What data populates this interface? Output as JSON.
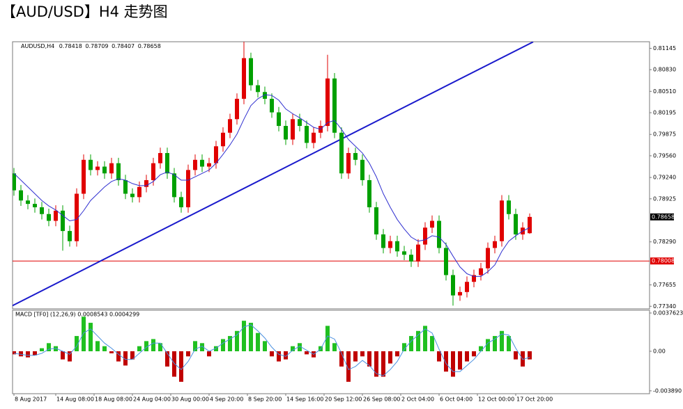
{
  "header": {
    "title": "【AUD/USD】H4 走势图"
  },
  "chart_data": {
    "type": "candlestick",
    "symbol": "AUDUSD,H4",
    "up_color": "#e00000",
    "down_color": "#00a000",
    "ma_color": "#3030d0",
    "xlim": [
      -0.2,
      91.2
    ],
    "ylim": [
      0.77302,
      0.81242
    ],
    "xticks": [
      {
        "value": 0,
        "label": "8 Aug 2017"
      },
      {
        "value": 6,
        "label": "14 Aug 08:00"
      },
      {
        "value": 11.5,
        "label": "18 Aug 08:00"
      },
      {
        "value": 17,
        "label": "24 Aug 04:00"
      },
      {
        "value": 22.5,
        "label": "30 Aug 00:00"
      },
      {
        "value": 28,
        "label": "4 Sep 20:00"
      },
      {
        "value": 33.5,
        "label": "8 Sep 20:00"
      },
      {
        "value": 39,
        "label": "14 Sep 16:00"
      },
      {
        "value": 44.5,
        "label": "20 Sep 12:00"
      },
      {
        "value": 50,
        "label": "26 Sep 08:00"
      },
      {
        "value": 55.5,
        "label": "2 Oct 04:00"
      },
      {
        "value": 61,
        "label": "6 Oct 04:00"
      },
      {
        "value": 66.5,
        "label": "12 Oct 00:00"
      },
      {
        "value": 72,
        "label": "17 Oct 20:00"
      }
    ],
    "yticks": [
      0.81145,
      {
        "value": 0.8083,
        "label": "0.80830"
      },
      {
        "value": 0.8051,
        "label": "0.80510"
      },
      0.80195,
      0.79875,
      {
        "value": 0.7956,
        "label": "0.79560"
      },
      {
        "value": 0.7924,
        "label": "0.79240"
      },
      0.78925,
      {
        "value": 0.7829,
        "label": "0.78290"
      },
      0.77655,
      {
        "value": 0.7734,
        "label": "0.77340"
      }
    ],
    "open": [
      0.793,
      0.7905,
      0.789,
      0.7885,
      0.788,
      0.787,
      0.786,
      0.7875,
      0.7845,
      0.783,
      0.79,
      0.795,
      0.7935,
      0.794,
      0.793,
      0.7945,
      0.792,
      0.79,
      0.7895,
      0.791,
      0.792,
      0.7945,
      0.796,
      0.793,
      0.7895,
      0.788,
      0.7935,
      0.795,
      0.794,
      0.7945,
      0.797,
      0.799,
      0.801,
      0.804,
      0.81,
      0.806,
      0.805,
      0.804,
      0.802,
      0.8,
      0.798,
      0.801,
      0.8,
      0.7975,
      0.799,
      0.8,
      0.807,
      0.799,
      0.793,
      0.796,
      0.795,
      0.792,
      0.788,
      0.784,
      0.782,
      0.783,
      0.7815,
      0.781,
      0.78,
      0.7825,
      0.785,
      0.786,
      0.782,
      0.778,
      0.775,
      0.7755,
      0.777,
      0.778,
      0.779,
      0.782,
      0.783,
      0.789,
      0.787,
      0.784,
      0.78418
    ],
    "high": [
      0.7938,
      0.7913,
      0.7898,
      0.7893,
      0.7888,
      0.7878,
      0.7883,
      0.7883,
      0.7853,
      0.7908,
      0.7958,
      0.7958,
      0.7948,
      0.7948,
      0.7953,
      0.7953,
      0.7928,
      0.7908,
      0.7918,
      0.7928,
      0.7953,
      0.7968,
      0.7968,
      0.7938,
      0.7903,
      0.7943,
      0.7958,
      0.7958,
      0.7953,
      0.7978,
      0.7998,
      0.8018,
      0.8048,
      0.8125,
      0.8108,
      0.8068,
      0.8058,
      0.8048,
      0.8028,
      0.8008,
      0.8018,
      0.8018,
      0.8008,
      0.7998,
      0.8008,
      0.8105,
      0.8078,
      0.7998,
      0.7968,
      0.7968,
      0.7958,
      0.7928,
      0.7888,
      0.7848,
      0.7838,
      0.7838,
      0.7823,
      0.7818,
      0.7833,
      0.7858,
      0.7868,
      0.7868,
      0.7828,
      0.7788,
      0.7763,
      0.7778,
      0.7788,
      0.7798,
      0.7828,
      0.7838,
      0.7898,
      0.7898,
      0.7878,
      0.7858,
      0.78709
    ],
    "low": [
      0.7897,
      0.7882,
      0.7877,
      0.7872,
      0.7862,
      0.7852,
      0.7852,
      0.7816,
      0.7822,
      0.7822,
      0.7892,
      0.7927,
      0.7927,
      0.7922,
      0.7922,
      0.7912,
      0.7892,
      0.7887,
      0.7887,
      0.7902,
      0.7912,
      0.7937,
      0.7922,
      0.7887,
      0.7872,
      0.7872,
      0.7927,
      0.7932,
      0.7932,
      0.7937,
      0.7962,
      0.7982,
      0.8002,
      0.8032,
      0.8052,
      0.8042,
      0.8032,
      0.8012,
      0.7992,
      0.7972,
      0.7972,
      0.7992,
      0.7967,
      0.7967,
      0.7982,
      0.7992,
      0.7982,
      0.7922,
      0.7922,
      0.7942,
      0.7912,
      0.7872,
      0.7832,
      0.7812,
      0.7812,
      0.7807,
      0.7802,
      0.7792,
      0.7792,
      0.7817,
      0.7842,
      0.7812,
      0.7772,
      0.7735,
      0.7742,
      0.7747,
      0.7762,
      0.7772,
      0.7782,
      0.7812,
      0.7822,
      0.7862,
      0.7832,
      0.7832,
      0.78407
    ],
    "close": [
      0.7905,
      0.789,
      0.7885,
      0.788,
      0.787,
      0.786,
      0.7875,
      0.7845,
      0.783,
      0.79,
      0.795,
      0.7935,
      0.794,
      0.793,
      0.7945,
      0.792,
      0.79,
      0.7895,
      0.791,
      0.792,
      0.7945,
      0.796,
      0.793,
      0.7895,
      0.788,
      0.7935,
      0.795,
      0.794,
      0.7945,
      0.797,
      0.799,
      0.801,
      0.804,
      0.81,
      0.806,
      0.805,
      0.804,
      0.802,
      0.8,
      0.798,
      0.801,
      0.8,
      0.7975,
      0.799,
      0.8,
      0.807,
      0.799,
      0.793,
      0.796,
      0.795,
      0.792,
      0.788,
      0.784,
      0.782,
      0.783,
      0.7815,
      0.781,
      0.78,
      0.7825,
      0.785,
      0.786,
      0.782,
      0.778,
      0.775,
      0.7755,
      0.777,
      0.778,
      0.779,
      0.782,
      0.783,
      0.789,
      0.787,
      0.784,
      0.785,
      0.78658
    ],
    "ma": [
      0.793,
      0.792,
      0.791,
      0.79,
      0.789,
      0.7882,
      0.7876,
      0.7868,
      0.786,
      0.7862,
      0.7875,
      0.789,
      0.79,
      0.791,
      0.7918,
      0.7922,
      0.792,
      0.7915,
      0.7912,
      0.7912,
      0.7918,
      0.7928,
      0.7932,
      0.7928,
      0.792,
      0.792,
      0.7925,
      0.793,
      0.7935,
      0.7945,
      0.7958,
      0.7972,
      0.7988,
      0.801,
      0.803,
      0.804,
      0.8046,
      0.8045,
      0.8038,
      0.8025,
      0.8018,
      0.8012,
      0.8005,
      0.7998,
      0.7995,
      0.8005,
      0.8008,
      0.7995,
      0.798,
      0.797,
      0.796,
      0.7945,
      0.7925,
      0.79,
      0.788,
      0.7862,
      0.7848,
      0.7836,
      0.783,
      0.7832,
      0.7838,
      0.7836,
      0.7825,
      0.7808,
      0.7792,
      0.7782,
      0.7778,
      0.7778,
      0.7785,
      0.7795,
      0.7815,
      0.783,
      0.7838,
      0.7845,
      0.785
    ],
    "trendline": {
      "x": [
        -0.2,
        74.5
      ],
      "y": [
        0.7735,
        0.8124
      ],
      "color": "#1a1acc"
    },
    "hline": {
      "value": 0.78008,
      "color": "#e00000"
    },
    "macd": {
      "label": "MACD [TF0] (12,26,9) 0.0008543 0.0004299",
      "ylim": [
        -0.004172,
        0.004036
      ],
      "yticks": [
        0.0037623,
        {
          "value": 0,
          "label": "0.00"
        },
        {
          "value": -0.00389,
          "label": "-0.003890"
        }
      ],
      "pos_color": "#20c020",
      "neg_color": "#c00000",
      "line_color": "#4a90e0",
      "histogram": [
        -0.0003,
        -0.0005,
        -0.0006,
        -0.0004,
        0.0003,
        0.0008,
        0.0005,
        -0.0008,
        -0.001,
        0.0015,
        0.0034,
        0.0028,
        0.001,
        0.0005,
        -0.0002,
        -0.001,
        -0.0014,
        -0.0008,
        0.0005,
        0.001,
        0.0012,
        0.0008,
        -0.0015,
        -0.0025,
        -0.003,
        -0.0005,
        0.001,
        0.0008,
        -0.0005,
        0.0005,
        0.0012,
        0.0015,
        0.002,
        0.003,
        0.0028,
        0.0018,
        0.001,
        -0.0005,
        -0.001,
        -0.0008,
        0.0005,
        0.0008,
        -0.0003,
        -0.0006,
        0.0005,
        0.0025,
        0.0008,
        -0.0015,
        -0.003,
        -0.001,
        -0.0005,
        -0.0015,
        -0.0025,
        -0.0025,
        -0.0012,
        -0.0005,
        0.0008,
        0.0015,
        0.002,
        0.0025,
        0.0015,
        -0.001,
        -0.002,
        -0.0025,
        -0.0018,
        -0.001,
        -0.0005,
        0.0005,
        0.0012,
        0.0015,
        0.002,
        0.0015,
        -0.0008,
        -0.0015,
        -0.0008
      ],
      "line": [
        -0.0002,
        -0.0003,
        -0.0004,
        -0.0004,
        -0.0002,
        0.0002,
        0.0003,
        0,
        -0.0003,
        0.0005,
        0.0018,
        0.0022,
        0.0015,
        0.0008,
        0.0003,
        -0.0003,
        -0.0008,
        -0.0008,
        -0.0002,
        0.0004,
        0.0008,
        0.0008,
        -0.0002,
        -0.0012,
        -0.0018,
        -0.001,
        0.0002,
        0.0005,
        0,
        0.0003,
        0.0008,
        0.0012,
        0.0016,
        0.0024,
        0.0026,
        0.002,
        0.0013,
        0.0004,
        -0.0003,
        -0.0005,
        0.0001,
        0.0005,
        0.0001,
        -0.0003,
        0.0002,
        0.0015,
        0.0012,
        -0.0002,
        -0.0018,
        -0.0015,
        -0.0009,
        -0.0014,
        -0.0022,
        -0.0024,
        -0.0018,
        -0.001,
        0.0002,
        0.001,
        0.0016,
        0.0022,
        0.0018,
        0.0002,
        -0.0012,
        -0.002,
        -0.002,
        -0.0014,
        -0.0008,
        0,
        0.0008,
        0.0012,
        0.0017,
        0.0016,
        0.0003,
        -0.0008,
        -0.0006
      ]
    }
  }
}
